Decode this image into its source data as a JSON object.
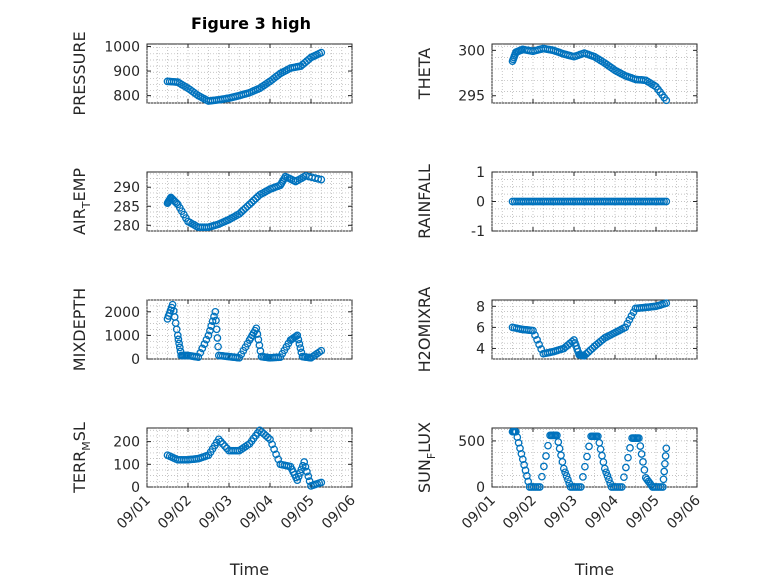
{
  "figure": {
    "title": "Figure 3 high",
    "marker_color": "#0072BD"
  },
  "chart_data": [
    {
      "type": "scatter",
      "ylabel": "PRESSURE",
      "ylim": [
        770,
        1010
      ],
      "yticks": [
        800,
        900,
        1000
      ],
      "ytick_labels": [
        "800",
        "900",
        "1000"
      ],
      "xticks": [],
      "xlabel": "",
      "grid": true,
      "x": [
        "09/01 12:00",
        "09/01 18:00",
        "09/02 00:00",
        "09/02 06:00",
        "09/02 12:00",
        "09/02 18:00",
        "09/03 00:00",
        "09/03 06:00",
        "09/03 12:00",
        "09/03 18:00",
        "09/04 00:00",
        "09/04 06:00",
        "09/04 12:00",
        "09/04 18:00",
        "09/05 00:00",
        "09/05 06:00"
      ],
      "y": [
        858,
        855,
        830,
        800,
        778,
        783,
        790,
        800,
        812,
        830,
        858,
        890,
        912,
        920,
        955,
        975
      ]
    },
    {
      "type": "scatter",
      "ylabel": "THETA",
      "ylim": [
        294.2,
        300.7
      ],
      "yticks": [
        295,
        300
      ],
      "ytick_labels": [
        "295",
        "300"
      ],
      "xticks": [],
      "xlabel": "",
      "grid": true,
      "x": [
        "09/01 12:00",
        "09/01 14:00",
        "09/01 18:00",
        "09/02 00:00",
        "09/02 06:00",
        "09/02 12:00",
        "09/02 18:00",
        "09/03 00:00",
        "09/03 06:00",
        "09/03 12:00",
        "09/03 18:00",
        "09/04 00:00",
        "09/04 06:00",
        "09/04 12:00",
        "09/04 18:00",
        "09/05 00:00",
        "09/05 06:00"
      ],
      "y": [
        298.8,
        299.8,
        300.1,
        299.9,
        300.2,
        300.0,
        299.6,
        299.3,
        299.7,
        299.3,
        298.6,
        297.8,
        297.2,
        296.8,
        296.7,
        296.0,
        294.5
      ]
    },
    {
      "type": "scatter",
      "ylabel": "AIR_TEMP",
      "ylim": [
        278.5,
        294
      ],
      "yticks": [
        280,
        285,
        290
      ],
      "ytick_labels": [
        "280",
        "285",
        "290"
      ],
      "xticks": [],
      "xlabel": "",
      "grid": true,
      "x": [
        "09/01 12:00",
        "09/01 14:00",
        "09/01 18:00",
        "09/02 00:00",
        "09/02 06:00",
        "09/02 12:00",
        "09/02 18:00",
        "09/03 00:00",
        "09/03 06:00",
        "09/03 12:00",
        "09/03 18:00",
        "09/04 00:00",
        "09/04 06:00",
        "09/04 09:00",
        "09/04 15:00",
        "09/04 21:00",
        "09/05 06:00"
      ],
      "y": [
        285.8,
        287.3,
        285.5,
        281.0,
        279.5,
        279.5,
        280.3,
        281.5,
        283.0,
        285.5,
        288.0,
        289.5,
        290.5,
        292.8,
        291.5,
        293.0,
        292.0
      ]
    },
    {
      "type": "scatter",
      "ylabel": "RAINFALL",
      "ylim": [
        -1,
        1
      ],
      "yticks": [
        -1,
        0,
        1
      ],
      "ytick_labels": [
        "-1",
        "0",
        "1"
      ],
      "xticks": [],
      "xlabel": "",
      "grid": true,
      "x": [
        "09/01 12:00",
        "09/05 06:00"
      ],
      "y": [
        0,
        0
      ],
      "note_series": "constant zero across the whole period"
    },
    {
      "type": "scatter",
      "ylabel": "MIXDEPTH",
      "ylim": [
        0,
        2500
      ],
      "yticks": [
        0,
        1000,
        2000
      ],
      "ytick_labels": [
        "0",
        "1000",
        "2000"
      ],
      "xticks": [],
      "xlabel": "",
      "grid": true,
      "x": [
        "09/01 12:00",
        "09/01 15:00",
        "09/01 18:00",
        "09/01 20:00",
        "09/02 00:00",
        "09/02 06:00",
        "09/02 12:00",
        "09/02 16:00",
        "09/02 18:00",
        "09/03 00:00",
        "09/03 06:00",
        "09/03 12:00",
        "09/03 16:00",
        "09/03 19:00",
        "09/04 00:00",
        "09/04 06:00",
        "09/04 12:00",
        "09/04 16:00",
        "09/04 19:00",
        "09/05 00:00",
        "09/05 06:00"
      ],
      "y": [
        1700,
        2300,
        1000,
        150,
        150,
        80,
        1000,
        2000,
        150,
        100,
        50,
        800,
        1300,
        100,
        50,
        80,
        800,
        1000,
        100,
        50,
        350
      ]
    },
    {
      "type": "scatter",
      "ylabel": "H2OMIXRA",
      "ylim": [
        3,
        8.6
      ],
      "yticks": [
        4,
        6,
        8
      ],
      "ytick_labels": [
        "4",
        "6",
        "8"
      ],
      "xticks": [],
      "xlabel": "",
      "grid": true,
      "x": [
        "09/01 12:00",
        "09/01 18:00",
        "09/02 00:00",
        "09/02 06:00",
        "09/02 12:00",
        "09/02 18:00",
        "09/03 00:00",
        "09/03 03:00",
        "09/03 06:00",
        "09/03 12:00",
        "09/03 18:00",
        "09/04 00:00",
        "09/04 06:00",
        "09/04 12:00",
        "09/04 18:00",
        "09/05 00:00",
        "09/05 06:00"
      ],
      "y": [
        6.0,
        5.8,
        5.7,
        3.5,
        3.7,
        4.0,
        4.8,
        3.4,
        3.3,
        4.2,
        5.0,
        5.5,
        6.0,
        7.8,
        7.9,
        8.0,
        8.3
      ]
    },
    {
      "type": "scatter",
      "ylabel": "TERR_MSL",
      "ylim": [
        0,
        260
      ],
      "yticks": [
        0,
        100,
        200
      ],
      "ytick_labels": [
        "0",
        "100",
        "200"
      ],
      "xticks": [
        "09/01",
        "09/02",
        "09/03",
        "09/04",
        "09/05",
        "09/06"
      ],
      "xlabel": "Time",
      "grid": true,
      "x": [
        "09/01 12:00",
        "09/01 18:00",
        "09/02 00:00",
        "09/02 06:00",
        "09/02 12:00",
        "09/02 18:00",
        "09/03 00:00",
        "09/03 06:00",
        "09/03 12:00",
        "09/03 18:00",
        "09/04 00:00",
        "09/04 06:00",
        "09/04 12:00",
        "09/04 16:00",
        "09/04 20:00",
        "09/05 00:00",
        "09/05 06:00"
      ],
      "y": [
        140,
        120,
        120,
        125,
        140,
        210,
        160,
        160,
        190,
        250,
        210,
        100,
        90,
        30,
        110,
        5,
        20
      ]
    },
    {
      "type": "scatter",
      "ylabel": "SUN_FLUX",
      "ylim": [
        0,
        640
      ],
      "yticks": [
        0,
        500
      ],
      "ytick_labels": [
        "0",
        "500"
      ],
      "xticks": [
        "09/01",
        "09/02",
        "09/03",
        "09/04",
        "09/05",
        "09/06"
      ],
      "xlabel": "Time",
      "grid": true,
      "x": [
        "09/01 12:00",
        "09/01 14:00",
        "09/01 18:00",
        "09/01 22:00",
        "09/02 04:00",
        "09/02 10:00",
        "09/02 14:00",
        "09/02 18:00",
        "09/02 22:00",
        "09/03 04:00",
        "09/03 10:00",
        "09/03 14:00",
        "09/03 18:00",
        "09/03 22:00",
        "09/04 04:00",
        "09/04 10:00",
        "09/04 14:00",
        "09/04 18:00",
        "09/04 22:00",
        "09/05 04:00",
        "09/05 06:00"
      ],
      "y": [
        600,
        600,
        300,
        0,
        0,
        560,
        560,
        200,
        0,
        0,
        550,
        550,
        200,
        0,
        0,
        530,
        530,
        100,
        0,
        0,
        420
      ]
    }
  ]
}
